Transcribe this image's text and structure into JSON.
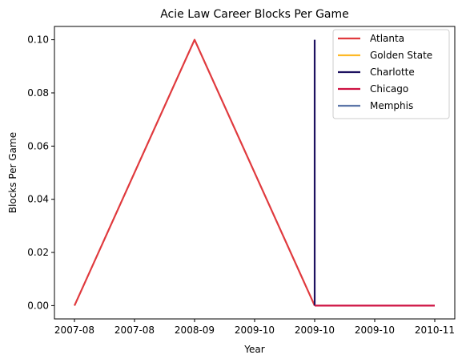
{
  "chart_data": {
    "type": "line",
    "title": "Acie Law Career Blocks Per Game",
    "xlabel": "Year",
    "ylabel": "Blocks Per Game",
    "x_ticks": [
      "2007-08",
      "2007-08",
      "2008-09",
      "2009-10",
      "2009-10",
      "2009-10",
      "2010-11"
    ],
    "y_ticks": [
      "0.00",
      "0.02",
      "0.04",
      "0.06",
      "0.08",
      "0.10"
    ],
    "xlim": [
      0,
      3
    ],
    "ylim": [
      -0.005,
      0.105
    ],
    "legend_position": "top-right",
    "series": [
      {
        "name": "Atlanta",
        "color": "#E03A3E",
        "points": [
          [
            0,
            0.0
          ],
          [
            1,
            0.1
          ],
          [
            2,
            0.0
          ]
        ]
      },
      {
        "name": "Golden State",
        "color": "#FDB927",
        "points": [
          [
            2,
            0.0
          ],
          [
            2,
            0.0
          ]
        ]
      },
      {
        "name": "Charlotte",
        "color": "#1D1160",
        "points": [
          [
            2,
            0.0
          ],
          [
            2,
            0.1
          ]
        ]
      },
      {
        "name": "Chicago",
        "color": "#CE1141",
        "points": [
          [
            2,
            0.0
          ],
          [
            3,
            0.0
          ]
        ]
      },
      {
        "name": "Memphis",
        "color": "#5D76A9",
        "points": [
          [
            3,
            0.0
          ],
          [
            3,
            0.0
          ]
        ]
      }
    ]
  }
}
